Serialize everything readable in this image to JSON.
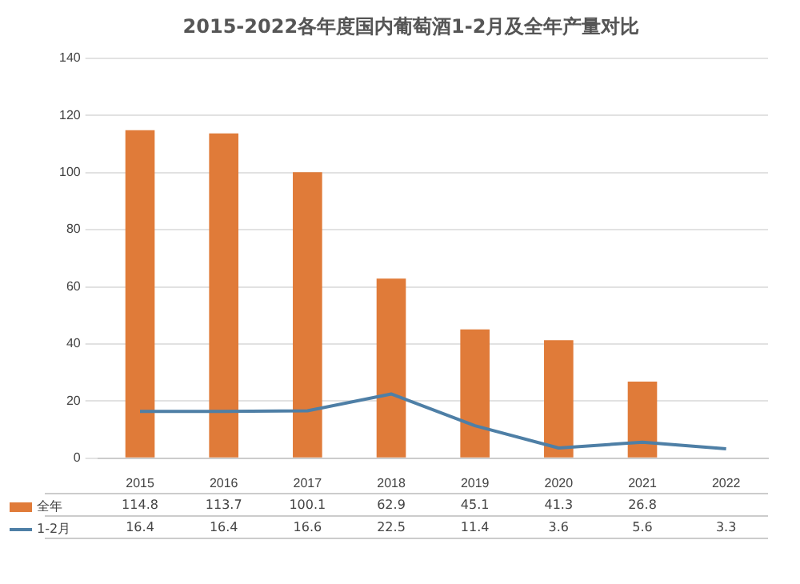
{
  "chart_data": {
    "type": "bar",
    "title": "2015-2022各年度国内葡萄酒1-2月及全年产量对比",
    "categories": [
      "2015",
      "2016",
      "2017",
      "2018",
      "2019",
      "2020",
      "2021",
      "2022"
    ],
    "series": [
      {
        "name": "全年",
        "color": "#e07b39",
        "values": [
          114.8,
          113.7,
          100.1,
          62.9,
          45.1,
          41.3,
          26.8,
          null
        ]
      },
      {
        "name": "1-2月",
        "type": "line",
        "color": "#4e7fa6",
        "values": [
          16.4,
          16.4,
          16.6,
          22.5,
          11.4,
          3.6,
          5.6,
          3.3
        ]
      }
    ],
    "ylim": [
      0,
      140
    ],
    "yticks": [
      0,
      20,
      40,
      60,
      80,
      100,
      120,
      140
    ],
    "grid": "y",
    "legend": "bottom",
    "data_labels": true,
    "marker": "none",
    "line_style": "solid"
  }
}
